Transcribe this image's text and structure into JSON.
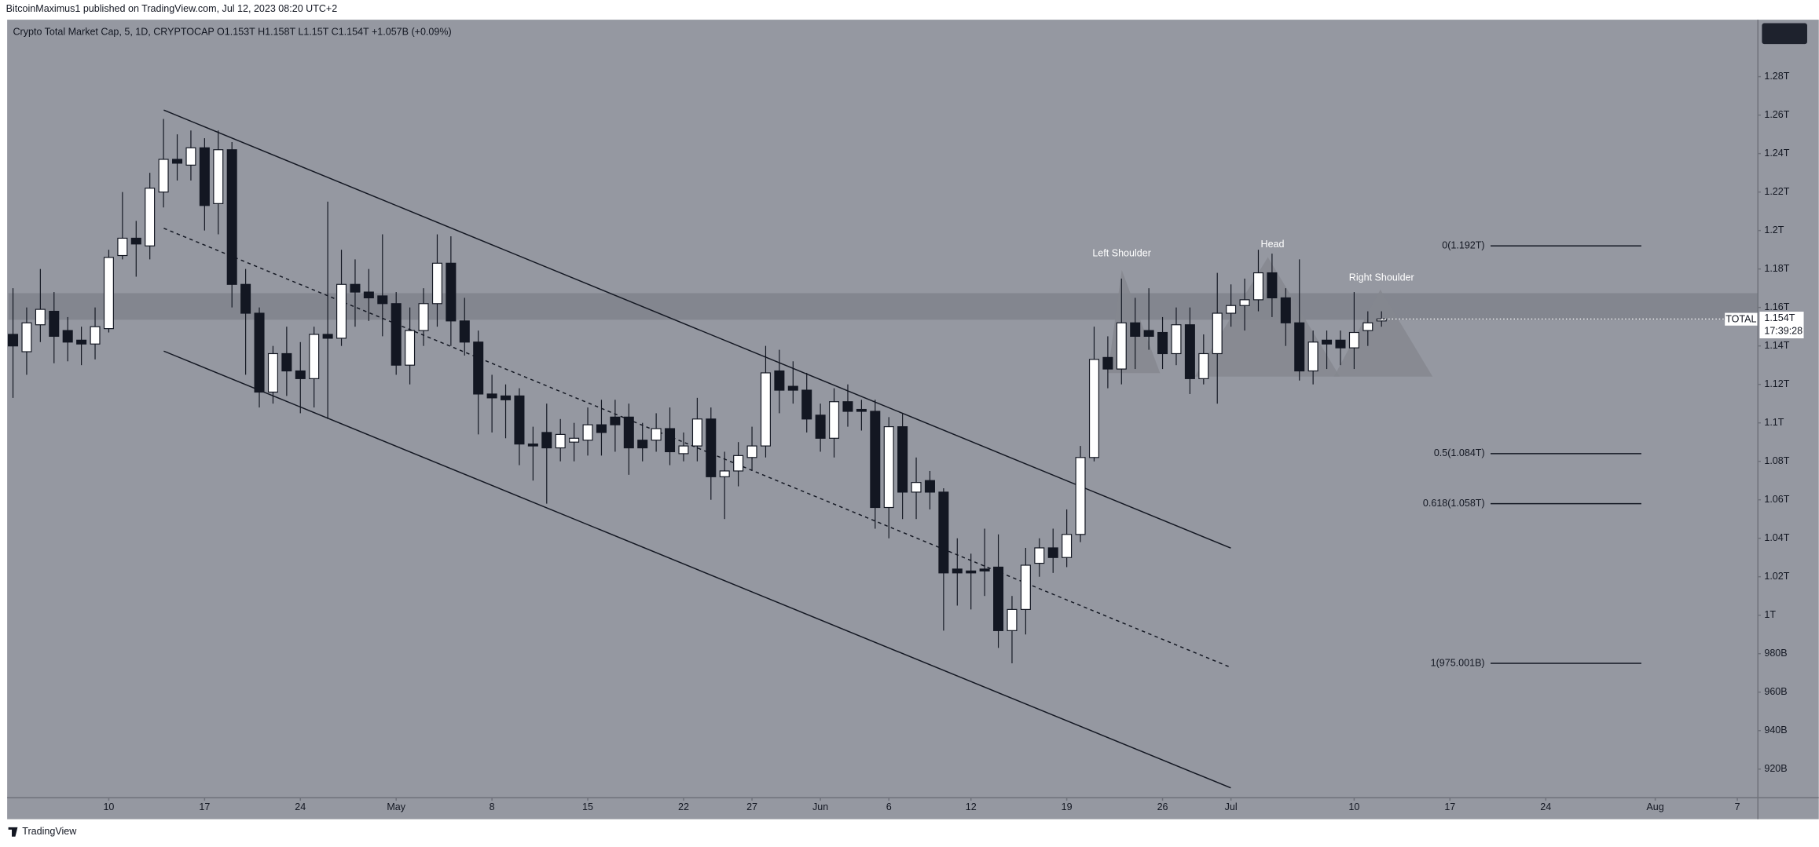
{
  "header": {
    "publisher": "BitcoinMaximus1 published on TradingView.com, Jul 12, 2023 08:20 UTC+2",
    "footer": "TradingView"
  },
  "chart_data": {
    "type": "candlestick",
    "title": "Crypto Total Market Cap, 5, 1D, CRYPTOCAP  O1.153T  H1.158T  L1.15T  C1.154T  +1.057B (+0.09%)",
    "x": [
      0,
      1,
      2,
      3,
      4,
      5,
      6,
      7,
      8,
      9,
      10,
      11,
      12,
      13,
      14,
      15,
      16,
      17,
      18,
      19,
      20,
      21,
      22,
      23,
      24,
      25,
      26,
      27,
      28,
      29,
      30,
      31,
      32,
      33,
      34,
      35,
      36,
      37,
      38,
      39,
      40,
      41,
      42,
      43,
      44,
      45,
      46,
      47,
      48,
      49,
      50,
      51,
      52,
      53,
      54,
      55,
      56,
      57,
      58,
      59,
      60,
      61,
      62,
      63,
      64,
      65,
      66,
      67,
      68,
      69,
      70,
      71,
      72,
      73,
      74,
      75,
      76,
      77,
      78,
      79,
      80,
      81,
      82,
      83,
      84,
      85,
      86,
      87,
      88,
      89,
      90,
      91,
      92,
      93,
      94,
      95,
      96,
      97,
      98,
      99,
      100
    ],
    "open": [
      1.146,
      1.137,
      1.151,
      1.158,
      1.148,
      1.143,
      1.141,
      1.149,
      1.187,
      1.196,
      1.192,
      1.22,
      1.237,
      1.234,
      1.243,
      1.214,
      1.242,
      1.172,
      1.157,
      1.116,
      1.136,
      1.127,
      1.123,
      1.146,
      1.144,
      1.172,
      1.168,
      1.166,
      1.162,
      1.13,
      1.148,
      1.162,
      1.183,
      1.153,
      1.142,
      1.115,
      1.114,
      1.114,
      1.089,
      1.095,
      1.087,
      1.09,
      1.091,
      1.099,
      1.103,
      1.103,
      1.091,
      1.091,
      1.097,
      1.084,
      1.088,
      1.102,
      1.072,
      1.075,
      1.082,
      1.088,
      1.127,
      1.119,
      1.117,
      1.104,
      1.092,
      1.111,
      1.107,
      1.106,
      1.056,
      1.098,
      1.064,
      1.07,
      1.064,
      1.024,
      1.023,
      1.024,
      1.025,
      0.992,
      1.003,
      1.027,
      1.035,
      1.03,
      1.042,
      1.082,
      1.134,
      1.128,
      1.152,
      1.148,
      1.147,
      1.136,
      1.151,
      1.123,
      1.136,
      1.157,
      1.161,
      1.164,
      1.178,
      1.165,
      1.152,
      1.127,
      1.143,
      1.143,
      1.139,
      1.148,
      1.153
    ],
    "high": [
      1.17,
      1.16,
      1.18,
      1.168,
      1.155,
      1.15,
      1.16,
      1.19,
      1.22,
      1.205,
      1.23,
      1.258,
      1.25,
      1.252,
      1.248,
      1.252,
      1.246,
      1.18,
      1.16,
      1.14,
      1.15,
      1.142,
      1.15,
      1.215,
      1.19,
      1.185,
      1.18,
      1.198,
      1.168,
      1.16,
      1.17,
      1.198,
      1.197,
      1.165,
      1.148,
      1.125,
      1.12,
      1.118,
      1.098,
      1.11,
      1.102,
      1.1,
      1.108,
      1.112,
      1.112,
      1.11,
      1.1,
      1.105,
      1.108,
      1.095,
      1.113,
      1.108,
      1.085,
      1.09,
      1.098,
      1.14,
      1.138,
      1.132,
      1.126,
      1.11,
      1.118,
      1.12,
      1.112,
      1.112,
      1.103,
      1.105,
      1.082,
      1.075,
      1.066,
      1.04,
      1.032,
      1.045,
      1.042,
      1.01,
      1.035,
      1.04,
      1.045,
      1.055,
      1.088,
      1.15,
      1.145,
      1.175,
      1.165,
      1.17,
      1.155,
      1.16,
      1.16,
      1.146,
      1.178,
      1.172,
      1.175,
      1.19,
      1.188,
      1.17,
      1.185,
      1.148,
      1.148,
      1.148,
      1.168,
      1.158,
      1.158
    ],
    "low": [
      1.113,
      1.125,
      1.142,
      1.131,
      1.132,
      1.13,
      1.133,
      1.147,
      1.185,
      1.176,
      1.185,
      1.212,
      1.226,
      1.226,
      1.2,
      1.198,
      1.16,
      1.125,
      1.108,
      1.11,
      1.114,
      1.105,
      1.108,
      1.102,
      1.14,
      1.15,
      1.153,
      1.145,
      1.125,
      1.12,
      1.14,
      1.15,
      1.14,
      1.135,
      1.094,
      1.095,
      1.092,
      1.078,
      1.07,
      1.058,
      1.08,
      1.08,
      1.083,
      1.083,
      1.085,
      1.073,
      1.08,
      1.085,
      1.078,
      1.08,
      1.08,
      1.06,
      1.05,
      1.067,
      1.075,
      1.082,
      1.105,
      1.11,
      1.095,
      1.085,
      1.082,
      1.098,
      1.096,
      1.045,
      1.04,
      1.05,
      1.05,
      1.055,
      0.992,
      1.005,
      1.003,
      1.01,
      0.983,
      0.975,
      0.99,
      1.02,
      1.022,
      1.025,
      1.038,
      1.08,
      1.118,
      1.12,
      1.128,
      1.138,
      1.128,
      1.13,
      1.115,
      1.12,
      1.11,
      1.15,
      1.148,
      1.158,
      1.155,
      1.14,
      1.122,
      1.12,
      1.128,
      1.13,
      1.128,
      1.14,
      1.15
    ],
    "close": [
      1.14,
      1.152,
      1.159,
      1.145,
      1.142,
      1.141,
      1.15,
      1.186,
      1.196,
      1.193,
      1.222,
      1.237,
      1.235,
      1.243,
      1.213,
      1.242,
      1.172,
      1.157,
      1.116,
      1.136,
      1.127,
      1.123,
      1.146,
      1.144,
      1.172,
      1.168,
      1.165,
      1.162,
      1.13,
      1.148,
      1.162,
      1.183,
      1.153,
      1.142,
      1.115,
      1.113,
      1.112,
      1.089,
      1.088,
      1.087,
      1.094,
      1.092,
      1.099,
      1.095,
      1.099,
      1.087,
      1.087,
      1.097,
      1.085,
      1.088,
      1.102,
      1.072,
      1.075,
      1.083,
      1.088,
      1.126,
      1.117,
      1.117,
      1.102,
      1.092,
      1.111,
      1.106,
      1.106,
      1.056,
      1.098,
      1.064,
      1.069,
      1.064,
      1.022,
      1.022,
      1.022,
      1.023,
      0.992,
      1.003,
      1.026,
      1.035,
      1.03,
      1.042,
      1.082,
      1.133,
      1.128,
      1.152,
      1.145,
      1.145,
      1.136,
      1.151,
      1.123,
      1.136,
      1.157,
      1.161,
      1.164,
      1.178,
      1.165,
      1.152,
      1.127,
      1.142,
      1.141,
      1.139,
      1.147,
      1.152,
      1.154
    ],
    "up_color": "#ffffff",
    "down_color": "#131722",
    "xlim": [
      -0.34,
      127.46
    ],
    "xticks": [
      {
        "value": 7,
        "label": "10"
      },
      {
        "value": 14,
        "label": "17"
      },
      {
        "value": 21,
        "label": "24"
      },
      {
        "value": 28,
        "label": "May"
      },
      {
        "value": 35,
        "label": "8"
      },
      {
        "value": 42,
        "label": "15"
      },
      {
        "value": 49,
        "label": "22"
      },
      {
        "value": 54,
        "label": "27"
      },
      {
        "value": 59,
        "label": "Jun"
      },
      {
        "value": 64,
        "label": "6"
      },
      {
        "value": 70,
        "label": "12"
      },
      {
        "value": 77,
        "label": "19"
      },
      {
        "value": 84,
        "label": "26"
      },
      {
        "value": 89,
        "label": "Jul"
      },
      {
        "value": 98,
        "label": "10"
      },
      {
        "value": 105,
        "label": "17"
      },
      {
        "value": 112,
        "label": "24"
      },
      {
        "value": 120,
        "label": "Aug"
      },
      {
        "value": 126,
        "label": "7"
      }
    ],
    "ylim": [
      0.9054,
      1.309
    ],
    "yticks": [
      {
        "value": 0.92,
        "label": "920B"
      },
      {
        "value": 0.94,
        "label": "940B"
      },
      {
        "value": 0.96,
        "label": "960B"
      },
      {
        "value": 0.98,
        "label": "980B"
      },
      {
        "value": 1,
        "label": "1T"
      },
      {
        "value": 1.02,
        "label": "1.02T"
      },
      {
        "value": 1.04,
        "label": "1.04T"
      },
      {
        "value": 1.06,
        "label": "1.06T"
      },
      {
        "value": 1.08,
        "label": "1.08T"
      },
      {
        "value": 1.1,
        "label": "1.1T"
      },
      {
        "value": 1.12,
        "label": "1.12T"
      },
      {
        "value": 1.14,
        "label": "1.14T"
      },
      {
        "value": 1.16,
        "label": "1.16T"
      },
      {
        "value": 1.18,
        "label": "1.18T"
      },
      {
        "value": 1.2,
        "label": "1.2T"
      },
      {
        "value": 1.22,
        "label": "1.22T"
      },
      {
        "value": 1.24,
        "label": "1.24T"
      },
      {
        "value": 1.26,
        "label": "1.26T"
      },
      {
        "value": 1.28,
        "label": "1.28T"
      }
    ],
    "fib_levels": [
      {
        "value": 1.192,
        "label": "0(1.192T)"
      },
      {
        "value": 1.084,
        "label": "0.5(1.084T)"
      },
      {
        "value": 1.058,
        "label": "0.618(1.058T)"
      },
      {
        "value": 0.975001,
        "label": "1(975.001B)"
      }
    ],
    "annotations": [
      "Left Shoulder",
      "Head",
      "Right Shoulder"
    ],
    "symbol": "TOTAL",
    "last_price": {
      "value": 1.154,
      "label": "1.154T"
    },
    "countdown": "17:39:28"
  }
}
